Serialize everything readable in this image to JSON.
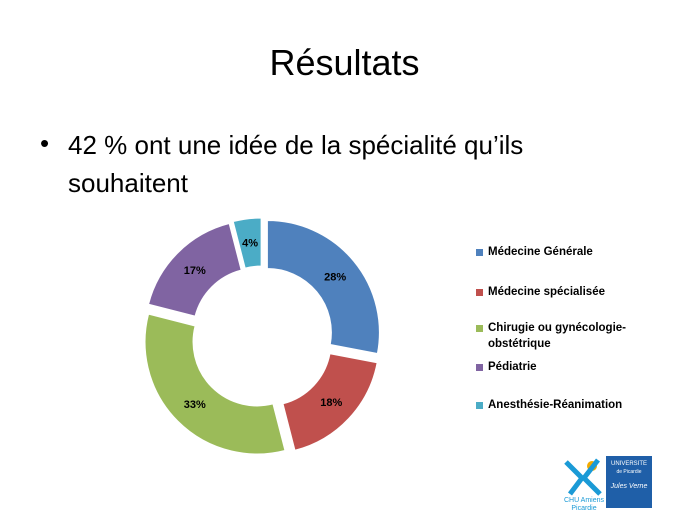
{
  "title": "Résultats",
  "bullet": "42 % ont une idée de la spécialité qu’ils souhaitent",
  "chart_data": {
    "type": "doughnut",
    "categories": [
      "Médecine Générale",
      "Médecine spécialisée",
      "Chirugie ou gynécologie-obstétrique",
      "Pédiatrie",
      "Anesthésie-Réanimation"
    ],
    "values": [
      28,
      18,
      33,
      17,
      4
    ],
    "value_labels": [
      "28%",
      "18%",
      "33%",
      "17%",
      "4%"
    ],
    "colors": [
      "#4f81bd",
      "#c0504d",
      "#9bbb59",
      "#8064a2",
      "#4bacc6"
    ]
  },
  "logos": {
    "chu": [
      "CHU Amiens",
      "Picardie"
    ],
    "universite": [
      "UNIVERSITE",
      "de Picardie",
      "Jules Verne"
    ]
  }
}
